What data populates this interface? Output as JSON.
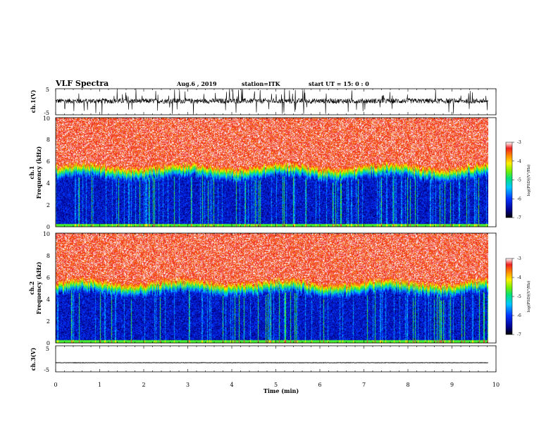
{
  "header": {
    "title": "VLF Spectra",
    "date": "Aug.6 , 2019",
    "station": "station=ITK",
    "start": "start UT = 15: 0 : 0"
  },
  "colors": {
    "waveform": "#000000",
    "spectrogram_high": "#e8302a",
    "spectrogram_low": "#0a1f9e"
  },
  "panels": {
    "ch1_wave": {
      "ylabel": "ch.1(V)",
      "yticks": [
        "5",
        "-5"
      ]
    },
    "ch1_spec": {
      "ylabel_line1": "ch.1",
      "ylabel_line2": "Frequency (kHz)",
      "yticks": [
        "0",
        "2",
        "4",
        "6",
        "8",
        "10"
      ]
    },
    "ch2_spec": {
      "ylabel_line1": "ch.2",
      "ylabel_line2": "Frequency (kHz)",
      "yticks": [
        "0",
        "2",
        "4",
        "6",
        "8",
        "10"
      ]
    },
    "ch3_wave": {
      "ylabel": "ch.3(V)",
      "yticks": [
        "5",
        "-5"
      ]
    }
  },
  "colorbar": {
    "label": "log(PSD)(V²/Hz)",
    "ticks": [
      "-3",
      "-4",
      "-5",
      "-6",
      "-7"
    ]
  },
  "xaxis": {
    "label": "Time (min)",
    "ticks": [
      "0",
      "1",
      "2",
      "3",
      "4",
      "5",
      "6",
      "7",
      "8",
      "9",
      "10"
    ]
  },
  "chart_data": [
    {
      "type": "line",
      "panel": "ch.1 waveform",
      "ylabel": "ch.1(V)",
      "xlim": [
        0,
        10
      ],
      "ylim": [
        -5,
        5
      ],
      "x_extent_min": [
        0,
        9.82
      ],
      "baseline_v": 0.3,
      "noise_range_v": [
        -1.5,
        2.0
      ],
      "spike_range_v": [
        -5,
        5
      ]
    },
    {
      "type": "heatmap",
      "panel": "ch.1 spectrogram",
      "ylabel": "Frequency (kHz)",
      "xlim": [
        0,
        10
      ],
      "ylim": [
        0,
        10
      ],
      "x_extent_min": [
        0,
        9.82
      ],
      "colorbar_label": "log(PSD)(V²/Hz)",
      "color_range": [
        -7,
        -3
      ],
      "band_boundary_khz": 5,
      "above_boundary_log_psd": -3.3,
      "below_boundary_log_psd": -6.3
    },
    {
      "type": "heatmap",
      "panel": "ch.2 spectrogram",
      "ylabel": "Frequency (kHz)",
      "xlim": [
        0,
        10
      ],
      "ylim": [
        0,
        10
      ],
      "x_extent_min": [
        0,
        9.82
      ],
      "colorbar_label": "log(PSD)(V²/Hz)",
      "color_range": [
        -7,
        -3
      ],
      "band_boundary_khz": 5,
      "above_boundary_log_psd": -3.3,
      "below_boundary_log_psd": -6.3
    },
    {
      "type": "line",
      "panel": "ch.3 waveform",
      "ylabel": "ch.3(V)",
      "xlim": [
        0,
        10
      ],
      "ylim": [
        -5,
        5
      ],
      "x_extent_min": [
        0,
        9.82
      ],
      "baseline_v": -1.5
    }
  ]
}
